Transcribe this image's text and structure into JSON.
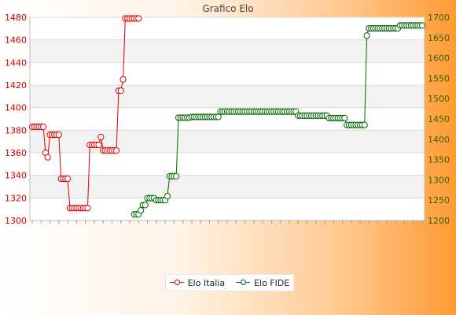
{
  "chart_data": {
    "type": "line",
    "title": "Grafico Elo",
    "y_left": {
      "min": 1300,
      "max": 1480,
      "ticks": [
        1300,
        1320,
        1340,
        1360,
        1380,
        1400,
        1420,
        1440,
        1460,
        1480
      ],
      "color": "#cc0000"
    },
    "y_right": {
      "min": 1200,
      "max": 1700,
      "ticks": [
        1200,
        1250,
        1300,
        1350,
        1400,
        1450,
        1500,
        1550,
        1600,
        1650,
        1700
      ],
      "color": "#336600"
    },
    "grid": true,
    "legend_position": "bottom-center",
    "series": [
      {
        "name": "Elo Italia",
        "axis": "left",
        "color": "#e00000",
        "values": [
          1383,
          1383,
          1383,
          1383,
          1383,
          1383,
          1360,
          1356,
          1376,
          1376,
          1376,
          1376,
          1376,
          1337,
          1337,
          1337,
          1337,
          1311,
          1311,
          1311,
          1311,
          1311,
          1311,
          1311,
          1311,
          1311,
          1367,
          1367,
          1367,
          1367,
          1367,
          1374,
          1362,
          1362,
          1362,
          1362,
          1362,
          1362,
          1362,
          1415,
          1415,
          1425,
          1479,
          1479,
          1479,
          1479,
          1479,
          1479,
          1479
        ]
      },
      {
        "name": "Elo FIDE",
        "axis": "right",
        "start_index": 46,
        "color": "#006600",
        "values": [
          1215,
          1215,
          1215,
          1225,
          1238,
          1238,
          1255,
          1255,
          1255,
          1255,
          1250,
          1250,
          1250,
          1250,
          1250,
          1260,
          1309,
          1309,
          1309,
          1309,
          1453,
          1453,
          1453,
          1453,
          1453,
          1453,
          1455,
          1455,
          1455,
          1455,
          1455,
          1455,
          1455,
          1455,
          1455,
          1455,
          1455,
          1455,
          1455,
          1468,
          1468,
          1468,
          1468,
          1468,
          1468,
          1468,
          1468,
          1468,
          1468,
          1468,
          1468,
          1468,
          1468,
          1468,
          1468,
          1468,
          1468,
          1468,
          1468,
          1468,
          1468,
          1468,
          1468,
          1468,
          1468,
          1468,
          1468,
          1468,
          1468,
          1468,
          1468,
          1468,
          1468,
          1468,
          1458,
          1458,
          1458,
          1458,
          1458,
          1458,
          1458,
          1458,
          1458,
          1458,
          1458,
          1458,
          1458,
          1458,
          1452,
          1452,
          1452,
          1452,
          1452,
          1452,
          1452,
          1452,
          1435,
          1435,
          1435,
          1435,
          1435,
          1435,
          1435,
          1435,
          1435,
          1655,
          1673,
          1673,
          1673,
          1673,
          1673,
          1673,
          1673,
          1673,
          1673,
          1673,
          1673,
          1673,
          1673,
          1673,
          1680,
          1680,
          1680,
          1680,
          1680,
          1680,
          1680,
          1680,
          1680,
          1680,
          1680
        ]
      }
    ]
  }
}
